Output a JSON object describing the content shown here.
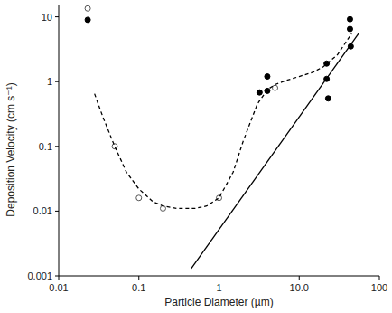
{
  "chart_data": {
    "type": "scatter",
    "x_label": "Particle Diameter (µm)",
    "y_label": "Deposition Velocity (cm s⁻¹)",
    "log": true,
    "grid": false,
    "xlim": [
      0.01,
      100
    ],
    "ylim": [
      0.001,
      15
    ],
    "xticks": [
      0.01,
      0.1,
      1,
      {
        "value": 10,
        "label": "10.0"
      },
      100
    ],
    "yticks": [
      0.001,
      0.01,
      0.1,
      1,
      10
    ],
    "series": [
      {
        "type": "scatter",
        "marker": "open",
        "color": "#555555",
        "x": [
          0.023,
          0.05,
          0.1,
          0.2,
          1.0,
          5.0
        ],
        "values": [
          13.5,
          0.1,
          0.016,
          0.011,
          0.016,
          0.8
        ]
      },
      {
        "type": "scatter",
        "marker": "filled",
        "color": "#000000",
        "x": [
          0.023,
          3.2,
          4.0,
          4.0,
          22,
          22,
          23,
          43,
          43,
          44
        ],
        "values": [
          9,
          0.68,
          1.2,
          0.72,
          1.9,
          1.1,
          0.55,
          9.2,
          6.5,
          3.5
        ]
      },
      {
        "type": "line",
        "line_style": "dashed",
        "color": "#000000",
        "x": [
          0.028,
          0.035,
          0.05,
          0.07,
          0.1,
          0.15,
          0.2,
          0.3,
          0.5,
          0.7,
          1,
          1.5,
          2,
          3,
          4,
          5,
          7,
          10,
          15,
          20,
          30,
          45
        ],
        "values": [
          0.65,
          0.3,
          0.1,
          0.04,
          0.022,
          0.014,
          0.012,
          0.011,
          0.011,
          0.012,
          0.016,
          0.04,
          0.12,
          0.45,
          0.75,
          0.9,
          1.05,
          1.2,
          1.4,
          1.7,
          2.6,
          5.5
        ]
      },
      {
        "type": "line",
        "line_style": "solid",
        "color": "#000000",
        "x": [
          0.45,
          55
        ],
        "values": [
          0.0013,
          5.5
        ]
      }
    ]
  }
}
